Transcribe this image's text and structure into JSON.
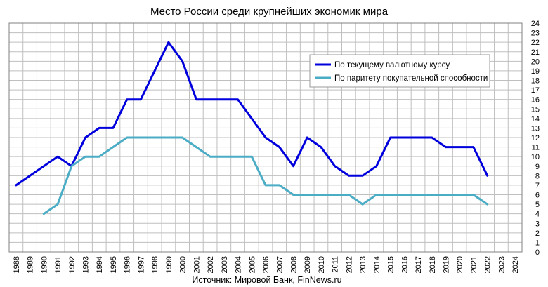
{
  "chart_data": {
    "type": "line",
    "title": "Место России среди крупнейших экономик мира",
    "source": "Источник: Мировой Банк, FinNews.ru",
    "x": [
      1988,
      1989,
      1990,
      1991,
      1992,
      1993,
      1994,
      1995,
      1996,
      1997,
      1998,
      1999,
      2000,
      2001,
      2002,
      2003,
      2004,
      2005,
      2006,
      2007,
      2008,
      2009,
      2010,
      2011,
      2012,
      2013,
      2014,
      2015,
      2016,
      2017,
      2018,
      2019,
      2020,
      2021,
      2022,
      2023,
      2024
    ],
    "xlim": [
      1988,
      2024
    ],
    "ylim": [
      0,
      24
    ],
    "y_axis_position": "right",
    "grid": true,
    "legend_position": "top-right",
    "series": [
      {
        "name": "По текущему валютному курсу",
        "color": "#0000dd",
        "points": [
          [
            1988,
            7
          ],
          [
            1991,
            10
          ],
          [
            1992,
            9
          ],
          [
            1993,
            12
          ],
          [
            1994,
            13
          ],
          [
            1995,
            13
          ],
          [
            1996,
            16
          ],
          [
            1997,
            16
          ],
          [
            1999,
            22
          ],
          [
            2000,
            20
          ],
          [
            2001,
            16
          ],
          [
            2004,
            16
          ],
          [
            2006,
            12
          ],
          [
            2007,
            11
          ],
          [
            2008,
            9
          ],
          [
            2009,
            12
          ],
          [
            2010,
            11
          ],
          [
            2011,
            9
          ],
          [
            2012,
            8
          ],
          [
            2013,
            8
          ],
          [
            2014,
            9
          ],
          [
            2015,
            12
          ],
          [
            2018,
            12
          ],
          [
            2019,
            11
          ],
          [
            2021,
            11
          ],
          [
            2022,
            8
          ]
        ]
      },
      {
        "name": "По паритету покупательной способности",
        "color": "#4bacc6",
        "points": [
          [
            1990,
            4
          ],
          [
            1991,
            5
          ],
          [
            1992,
            9
          ],
          [
            1993,
            10
          ],
          [
            1994,
            10
          ],
          [
            1996,
            12
          ],
          [
            2000,
            12
          ],
          [
            2002,
            10
          ],
          [
            2005,
            10
          ],
          [
            2006,
            7
          ],
          [
            2007,
            7
          ],
          [
            2008,
            6
          ],
          [
            2012,
            6
          ],
          [
            2013,
            5
          ],
          [
            2014,
            6
          ],
          [
            2021,
            6
          ],
          [
            2022,
            5
          ]
        ]
      }
    ]
  }
}
